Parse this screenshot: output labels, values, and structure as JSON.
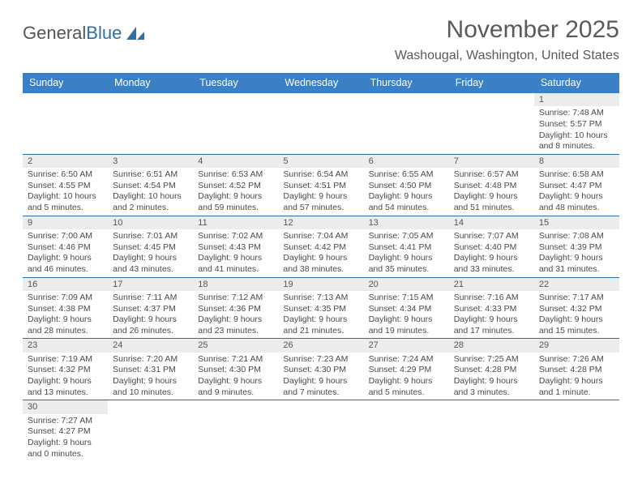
{
  "logo": {
    "text1": "General",
    "text2": "Blue"
  },
  "title": "November 2025",
  "location": "Washougal, Washington, United States",
  "header_bg": "#3b7fc4",
  "days_of_week": [
    "Sunday",
    "Monday",
    "Tuesday",
    "Wednesday",
    "Thursday",
    "Friday",
    "Saturday"
  ],
  "weeks": [
    [
      null,
      null,
      null,
      null,
      null,
      null,
      {
        "n": "1",
        "sunrise": "7:48 AM",
        "sunset": "5:57 PM",
        "daylight": "10 hours and 8 minutes."
      }
    ],
    [
      {
        "n": "2",
        "sunrise": "6:50 AM",
        "sunset": "4:55 PM",
        "daylight": "10 hours and 5 minutes."
      },
      {
        "n": "3",
        "sunrise": "6:51 AM",
        "sunset": "4:54 PM",
        "daylight": "10 hours and 2 minutes."
      },
      {
        "n": "4",
        "sunrise": "6:53 AM",
        "sunset": "4:52 PM",
        "daylight": "9 hours and 59 minutes."
      },
      {
        "n": "5",
        "sunrise": "6:54 AM",
        "sunset": "4:51 PM",
        "daylight": "9 hours and 57 minutes."
      },
      {
        "n": "6",
        "sunrise": "6:55 AM",
        "sunset": "4:50 PM",
        "daylight": "9 hours and 54 minutes."
      },
      {
        "n": "7",
        "sunrise": "6:57 AM",
        "sunset": "4:48 PM",
        "daylight": "9 hours and 51 minutes."
      },
      {
        "n": "8",
        "sunrise": "6:58 AM",
        "sunset": "4:47 PM",
        "daylight": "9 hours and 48 minutes."
      }
    ],
    [
      {
        "n": "9",
        "sunrise": "7:00 AM",
        "sunset": "4:46 PM",
        "daylight": "9 hours and 46 minutes."
      },
      {
        "n": "10",
        "sunrise": "7:01 AM",
        "sunset": "4:45 PM",
        "daylight": "9 hours and 43 minutes."
      },
      {
        "n": "11",
        "sunrise": "7:02 AM",
        "sunset": "4:43 PM",
        "daylight": "9 hours and 41 minutes."
      },
      {
        "n": "12",
        "sunrise": "7:04 AM",
        "sunset": "4:42 PM",
        "daylight": "9 hours and 38 minutes."
      },
      {
        "n": "13",
        "sunrise": "7:05 AM",
        "sunset": "4:41 PM",
        "daylight": "9 hours and 35 minutes."
      },
      {
        "n": "14",
        "sunrise": "7:07 AM",
        "sunset": "4:40 PM",
        "daylight": "9 hours and 33 minutes."
      },
      {
        "n": "15",
        "sunrise": "7:08 AM",
        "sunset": "4:39 PM",
        "daylight": "9 hours and 31 minutes."
      }
    ],
    [
      {
        "n": "16",
        "sunrise": "7:09 AM",
        "sunset": "4:38 PM",
        "daylight": "9 hours and 28 minutes."
      },
      {
        "n": "17",
        "sunrise": "7:11 AM",
        "sunset": "4:37 PM",
        "daylight": "9 hours and 26 minutes."
      },
      {
        "n": "18",
        "sunrise": "7:12 AM",
        "sunset": "4:36 PM",
        "daylight": "9 hours and 23 minutes."
      },
      {
        "n": "19",
        "sunrise": "7:13 AM",
        "sunset": "4:35 PM",
        "daylight": "9 hours and 21 minutes."
      },
      {
        "n": "20",
        "sunrise": "7:15 AM",
        "sunset": "4:34 PM",
        "daylight": "9 hours and 19 minutes."
      },
      {
        "n": "21",
        "sunrise": "7:16 AM",
        "sunset": "4:33 PM",
        "daylight": "9 hours and 17 minutes."
      },
      {
        "n": "22",
        "sunrise": "7:17 AM",
        "sunset": "4:32 PM",
        "daylight": "9 hours and 15 minutes."
      }
    ],
    [
      {
        "n": "23",
        "sunrise": "7:19 AM",
        "sunset": "4:32 PM",
        "daylight": "9 hours and 13 minutes."
      },
      {
        "n": "24",
        "sunrise": "7:20 AM",
        "sunset": "4:31 PM",
        "daylight": "9 hours and 10 minutes."
      },
      {
        "n": "25",
        "sunrise": "7:21 AM",
        "sunset": "4:30 PM",
        "daylight": "9 hours and 9 minutes."
      },
      {
        "n": "26",
        "sunrise": "7:23 AM",
        "sunset": "4:30 PM",
        "daylight": "9 hours and 7 minutes."
      },
      {
        "n": "27",
        "sunrise": "7:24 AM",
        "sunset": "4:29 PM",
        "daylight": "9 hours and 5 minutes."
      },
      {
        "n": "28",
        "sunrise": "7:25 AM",
        "sunset": "4:28 PM",
        "daylight": "9 hours and 3 minutes."
      },
      {
        "n": "29",
        "sunrise": "7:26 AM",
        "sunset": "4:28 PM",
        "daylight": "9 hours and 1 minute."
      }
    ],
    [
      {
        "n": "30",
        "sunrise": "7:27 AM",
        "sunset": "4:27 PM",
        "daylight": "9 hours and 0 minutes."
      },
      null,
      null,
      null,
      null,
      null,
      null
    ]
  ],
  "labels": {
    "sunrise": "Sunrise: ",
    "sunset": "Sunset: ",
    "daylight": "Daylight: "
  }
}
